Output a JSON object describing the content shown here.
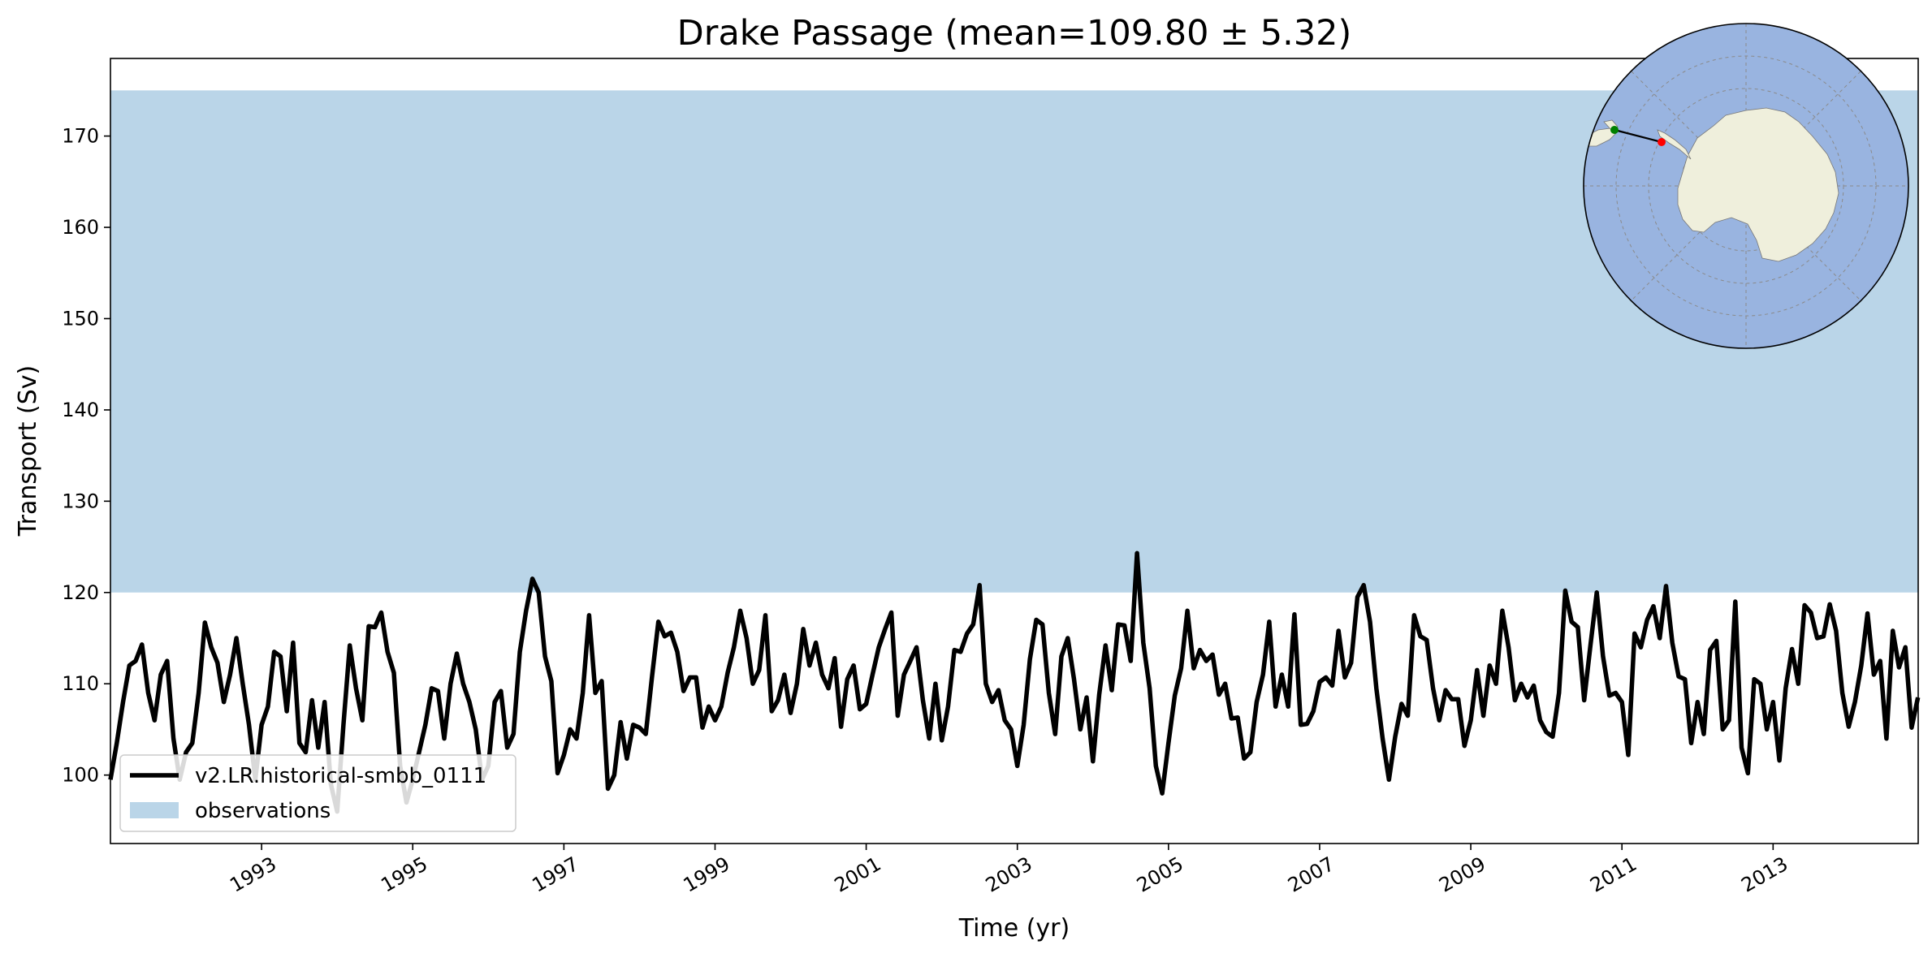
{
  "chart_data": {
    "type": "line",
    "title": "Drake Passage (mean=109.80 ± 5.32)",
    "xlabel": "Time (yr)",
    "ylabel": "Transport (Sv)",
    "xlim": [
      1991.0,
      2014.92
    ],
    "ylim": [
      92.5,
      178.5
    ],
    "x_tick_labels": [
      "1993",
      "1995",
      "1997",
      "1999",
      "2001",
      "2003",
      "2005",
      "2007",
      "2009",
      "2011",
      "2013"
    ],
    "y_tick_labels": [
      "100",
      "110",
      "120",
      "130",
      "140",
      "150",
      "160",
      "170"
    ],
    "grid": false,
    "legend_position": "lower-left",
    "observations": {
      "name": "observations",
      "range": [
        120,
        175
      ],
      "color": "#bad5e8"
    },
    "series": [
      {
        "name": "v2.LR.historical-smbb_0111",
        "color": "#000000",
        "x_start": 1991.0,
        "x_step_months": 1,
        "values": [
          99.5,
          103.5,
          108.0,
          112.0,
          112.5,
          114.3,
          109.0,
          106.0,
          111.0,
          112.5,
          104.0,
          99.5,
          102.5,
          103.5,
          109.0,
          116.7,
          114.0,
          112.3,
          108.0,
          111.0,
          115.0,
          110.0,
          105.5,
          99.5,
          105.5,
          107.5,
          113.5,
          113.0,
          107.0,
          114.5,
          103.5,
          102.5,
          108.2,
          103.0,
          108.0,
          99.0,
          96.0,
          105.5,
          114.2,
          109.5,
          106.0,
          116.3,
          116.2,
          117.8,
          113.5,
          111.2,
          101.0,
          97.0,
          99.5,
          102.5,
          105.5,
          109.5,
          109.2,
          104.0,
          110.0,
          113.3,
          110.0,
          108.0,
          105.0,
          99.5,
          101.0,
          108.0,
          109.2,
          103.0,
          104.5,
          113.5,
          118.0,
          121.5,
          120.0,
          113.0,
          110.3,
          100.2,
          102.2,
          105.0,
          104.0,
          109.0,
          117.5,
          109.0,
          110.3,
          98.5,
          100.0,
          105.8,
          101.8,
          105.5,
          105.2,
          104.5,
          110.8,
          116.8,
          115.2,
          115.6,
          113.5,
          109.2,
          110.7,
          110.7,
          105.2,
          107.5,
          106.0,
          107.5,
          111.2,
          114.0,
          118.0,
          115.0,
          110.0,
          111.5,
          117.5,
          107.0,
          108.2,
          111.0,
          106.8,
          110.0,
          116.0,
          112.0,
          114.5,
          111.0,
          109.5,
          112.8,
          105.3,
          110.5,
          112.0,
          107.2,
          107.8,
          111.0,
          114.0,
          116.0,
          117.8,
          106.5,
          111.0,
          112.5,
          114.0,
          108.2,
          104.0,
          110.0,
          103.8,
          107.5,
          113.7,
          113.5,
          115.5,
          116.5,
          120.8,
          110.0,
          108.0,
          109.3,
          106.0,
          105.0,
          101.0,
          105.5,
          112.7,
          117.0,
          116.5,
          109.0,
          104.5,
          113.0,
          115.0,
          110.5,
          105.0,
          108.5,
          101.5,
          108.8,
          114.2,
          109.3,
          116.5,
          116.4,
          112.5,
          124.3,
          114.5,
          109.5,
          101.0,
          98.0,
          103.5,
          108.7,
          111.7,
          118.0,
          111.7,
          113.7,
          112.5,
          113.2,
          108.8,
          110.0,
          106.2,
          106.3,
          101.8,
          102.5,
          108.0,
          111.0,
          116.8,
          107.5,
          111.0,
          107.5,
          117.6,
          105.5,
          105.6,
          107.0,
          110.2,
          110.7,
          109.8,
          115.8,
          110.7,
          112.3,
          119.5,
          120.8,
          116.8,
          109.5,
          104.0,
          99.5,
          104.2,
          107.8,
          106.5,
          117.5,
          115.2,
          114.8,
          109.5,
          106.0,
          109.3,
          108.3,
          108.3,
          103.2,
          106.0,
          111.5,
          106.5,
          112.0,
          110.0,
          118.0,
          114.0,
          108.2,
          110.0,
          108.5,
          109.8,
          106.0,
          104.7,
          104.2,
          109.0,
          120.2,
          116.8,
          116.2,
          108.2,
          114.2,
          120.0,
          113.0,
          108.7,
          109.0,
          108.0,
          102.2,
          115.5,
          114.0,
          117.0,
          118.5,
          115.0,
          120.7,
          114.5,
          110.8,
          110.5,
          103.5,
          108.0,
          104.5,
          113.7,
          114.7,
          105.0,
          106.0,
          119.0,
          103.0,
          100.2,
          110.5,
          110.0,
          105.0,
          108.0,
          101.6,
          109.5,
          113.8,
          110.0,
          118.6,
          117.8,
          115.0,
          115.2,
          118.7,
          115.8,
          109.0,
          105.3,
          108.0,
          112.0,
          117.7,
          111.0,
          112.5,
          104.0,
          115.8,
          111.8,
          114.0,
          105.2,
          108.5
        ]
      }
    ]
  },
  "inset_map": {
    "projection": "south-polar-stereographic",
    "ocean_color": "#99b4e0",
    "land_color": "#efefdc",
    "section_start_color": "#008000",
    "section_end_color": "#ff0000",
    "section_line_color": "#000000"
  }
}
